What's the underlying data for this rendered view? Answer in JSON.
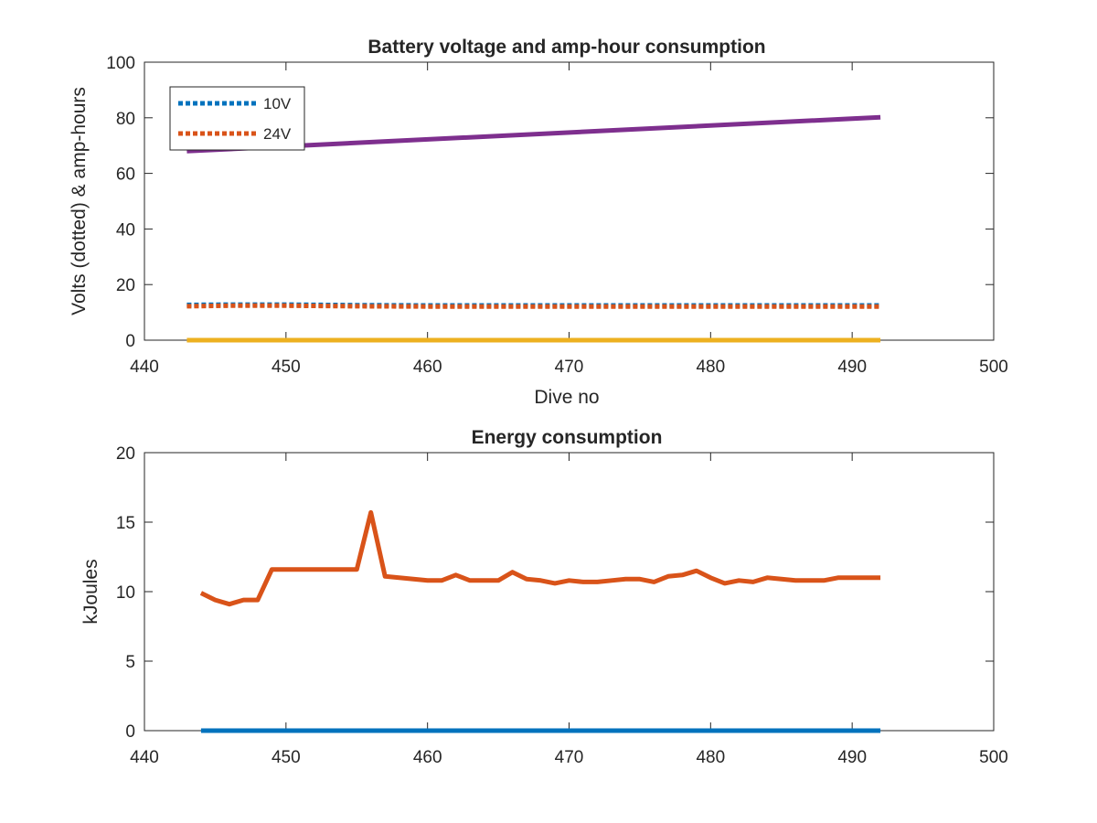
{
  "chart_data": [
    {
      "type": "line",
      "title": "Battery voltage and amp-hour consumption",
      "xlabel": "Dive no",
      "ylabel": "Volts (dotted) & amp-hours",
      "xlim": [
        440,
        500
      ],
      "ylim": [
        0,
        100
      ],
      "xticks": [
        440,
        450,
        460,
        470,
        480,
        490,
        500
      ],
      "yticks": [
        0,
        20,
        40,
        60,
        80,
        100
      ],
      "grid": false,
      "legend": {
        "placement": "top-left",
        "entries": [
          "10V",
          "24V"
        ]
      },
      "series": [
        {
          "name": "10V",
          "style": "dotted",
          "color": "#0072BD",
          "x": [
            443,
            446,
            450,
            455,
            460,
            465,
            470,
            475,
            480,
            485,
            492
          ],
          "y": [
            12.7,
            12.8,
            12.8,
            12.6,
            12.5,
            12.5,
            12.5,
            12.5,
            12.5,
            12.5,
            12.5
          ]
        },
        {
          "name": "24V",
          "style": "dotted",
          "color": "#D95319",
          "x": [
            443,
            446,
            450,
            455,
            460,
            465,
            470,
            475,
            480,
            485,
            492
          ],
          "y": [
            12.2,
            12.4,
            12.4,
            12.2,
            12.1,
            12.1,
            12.1,
            12.1,
            12.1,
            12.1,
            12.1
          ]
        },
        {
          "style": "solid",
          "color": "#7E2F8E",
          "x": [
            443,
            492
          ],
          "y": [
            68,
            80.2
          ]
        },
        {
          "style": "solid",
          "color": "#EDB120",
          "x": [
            443,
            492
          ],
          "y": [
            0,
            0
          ]
        }
      ]
    },
    {
      "type": "line",
      "title": "Energy consumption",
      "xlabel": "",
      "ylabel": "kJoules",
      "xlim": [
        440,
        500
      ],
      "ylim": [
        0,
        20
      ],
      "xticks": [
        440,
        450,
        460,
        470,
        480,
        490,
        500
      ],
      "yticks": [
        0,
        5,
        10,
        15,
        20
      ],
      "grid": false,
      "series": [
        {
          "style": "solid",
          "color": "#D95319",
          "x": [
            444,
            445,
            446,
            447,
            448,
            449,
            450,
            451,
            452,
            453,
            454,
            455,
            456,
            457,
            458,
            459,
            460,
            461,
            462,
            463,
            464,
            465,
            466,
            467,
            468,
            469,
            470,
            471,
            472,
            473,
            474,
            475,
            476,
            477,
            478,
            479,
            480,
            481,
            482,
            483,
            484,
            485,
            486,
            487,
            488,
            489,
            490,
            491,
            492
          ],
          "y": [
            9.9,
            9.4,
            9.1,
            9.4,
            9.4,
            11.6,
            11.6,
            11.6,
            11.6,
            11.6,
            11.6,
            11.6,
            15.7,
            11.1,
            11.0,
            10.9,
            10.8,
            10.8,
            11.2,
            10.8,
            10.8,
            10.8,
            11.4,
            10.9,
            10.8,
            10.6,
            10.8,
            10.7,
            10.7,
            10.8,
            10.9,
            10.9,
            10.7,
            11.1,
            11.2,
            11.5,
            11.0,
            10.6,
            10.8,
            10.7,
            11.0,
            10.9,
            10.8,
            10.8,
            10.8,
            11.0,
            11.0,
            11.0,
            11.0
          ]
        },
        {
          "style": "solid",
          "color": "#0072BD",
          "x": [
            444,
            492
          ],
          "y": [
            0,
            0
          ]
        }
      ]
    }
  ]
}
